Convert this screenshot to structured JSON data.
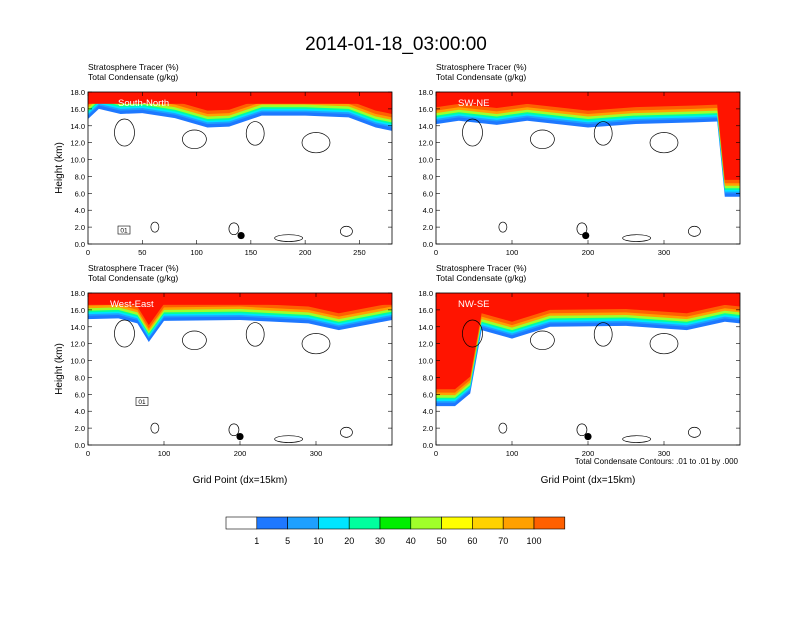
{
  "title": "2014-01-18_03:00:00",
  "footnote": "Total Condensate Contours: .01 to .01 by .000",
  "colorbar": {
    "labels": [
      "1",
      "5",
      "10",
      "20",
      "30",
      "40",
      "50",
      "60",
      "70",
      "100"
    ],
    "colors": [
      "#ffffff",
      "#1e78ff",
      "#1ea0ff",
      "#00e5ff",
      "#00ff9e",
      "#00ee00",
      "#a0ff2a",
      "#ffff00",
      "#ffd200",
      "#ffa000",
      "#ff6000",
      "#ff1400"
    ]
  },
  "chart_data": [
    {
      "type": "heatmap",
      "panel": "south-north",
      "header_line1": "Stratosphere Tracer   (%)",
      "header_line2": "Total Condensate   (g/kg)",
      "label": "South-North",
      "ylabel": "Height (km)",
      "xlabel": "",
      "xlim": [
        0,
        280
      ],
      "ylim": [
        0,
        18
      ],
      "xticks": [
        "0",
        "50",
        "100",
        "150",
        "200",
        "250"
      ],
      "xtick_values": [
        0,
        50,
        100,
        150,
        200,
        250
      ],
      "yticks": [
        "0.0",
        "2.0",
        "4.0",
        "6.0",
        "8.0",
        "10.0",
        "12.0",
        "14.0",
        "16.0",
        "18.0"
      ],
      "tropopause_km": [
        [
          0,
          15.2
        ],
        [
          10,
          16.4
        ],
        [
          30,
          15.8
        ],
        [
          50,
          15.9
        ],
        [
          80,
          15.3
        ],
        [
          110,
          14.2
        ],
        [
          130,
          14.3
        ],
        [
          160,
          15.6
        ],
        [
          200,
          15.6
        ],
        [
          240,
          15.4
        ],
        [
          265,
          14.2
        ],
        [
          280,
          13.8
        ]
      ],
      "surface_marker": [
        141,
        1.0
      ],
      "box_label": "01"
    },
    {
      "type": "heatmap",
      "panel": "sw-ne",
      "header_line1": "Stratosphere Tracer   (%)",
      "header_line2": "Total Condensate   (g/kg)",
      "label": "SW-NE",
      "ylabel": "",
      "xlabel": "",
      "xlim": [
        0,
        400
      ],
      "ylim": [
        0,
        18
      ],
      "xticks": [
        "0",
        "100",
        "200",
        "300"
      ],
      "xtick_values": [
        0,
        100,
        200,
        300
      ],
      "yticks": [
        "0.0",
        "2.0",
        "4.0",
        "6.0",
        "8.0",
        "10.0",
        "12.0",
        "14.0",
        "16.0",
        "18.0"
      ],
      "tropopause_km": [
        [
          0,
          14.6
        ],
        [
          30,
          15.0
        ],
        [
          80,
          14.5
        ],
        [
          120,
          15.0
        ],
        [
          200,
          14.2
        ],
        [
          260,
          14.6
        ],
        [
          340,
          14.8
        ],
        [
          370,
          14.9
        ],
        [
          380,
          6.0
        ],
        [
          400,
          6.0
        ]
      ],
      "surface_marker": [
        197,
        1.0
      ],
      "box_label": ""
    },
    {
      "type": "heatmap",
      "panel": "west-east",
      "header_line1": "Stratosphere Tracer   (%)",
      "header_line2": "Total Condensate   (g/kg)",
      "label": "West-East",
      "ylabel": "Height (km)",
      "xlabel": "Grid Point (dx=15km)",
      "xlim": [
        0,
        400
      ],
      "ylim": [
        0,
        18
      ],
      "xticks": [
        "0",
        "100",
        "200",
        "300"
      ],
      "xtick_values": [
        0,
        100,
        200,
        300
      ],
      "yticks": [
        "0.0",
        "2.0",
        "4.0",
        "6.0",
        "8.0",
        "10.0",
        "12.0",
        "14.0",
        "16.0",
        "18.0"
      ],
      "tropopause_km": [
        [
          0,
          15.3
        ],
        [
          40,
          15.4
        ],
        [
          65,
          14.8
        ],
        [
          80,
          12.6
        ],
        [
          100,
          15.1
        ],
        [
          200,
          15.2
        ],
        [
          290,
          14.8
        ],
        [
          330,
          14.0
        ],
        [
          400,
          15.2
        ]
      ],
      "surface_marker": [
        200,
        1.0
      ],
      "box_label": "01"
    },
    {
      "type": "heatmap",
      "panel": "nw-se",
      "header_line1": "Stratosphere Tracer   (%)",
      "header_line2": "Total Condensate   (g/kg)",
      "label": "NW-SE",
      "ylabel": "",
      "xlabel": "Grid Point (dx=15km)",
      "xlim": [
        0,
        400
      ],
      "ylim": [
        0,
        18
      ],
      "xticks": [
        "0",
        "100",
        "200",
        "300"
      ],
      "xtick_values": [
        0,
        100,
        200,
        300
      ],
      "yticks": [
        "0.0",
        "2.0",
        "4.0",
        "6.0",
        "8.0",
        "10.0",
        "12.0",
        "14.0",
        "16.0",
        "18.0"
      ],
      "tropopause_km": [
        [
          0,
          5.0
        ],
        [
          25,
          5.0
        ],
        [
          45,
          6.5
        ],
        [
          60,
          14.0
        ],
        [
          100,
          13.0
        ],
        [
          150,
          14.4
        ],
        [
          250,
          14.5
        ],
        [
          330,
          14.0
        ],
        [
          380,
          15.0
        ],
        [
          400,
          14.8
        ]
      ],
      "surface_marker": [
        200,
        1.0
      ],
      "box_label": ""
    }
  ]
}
